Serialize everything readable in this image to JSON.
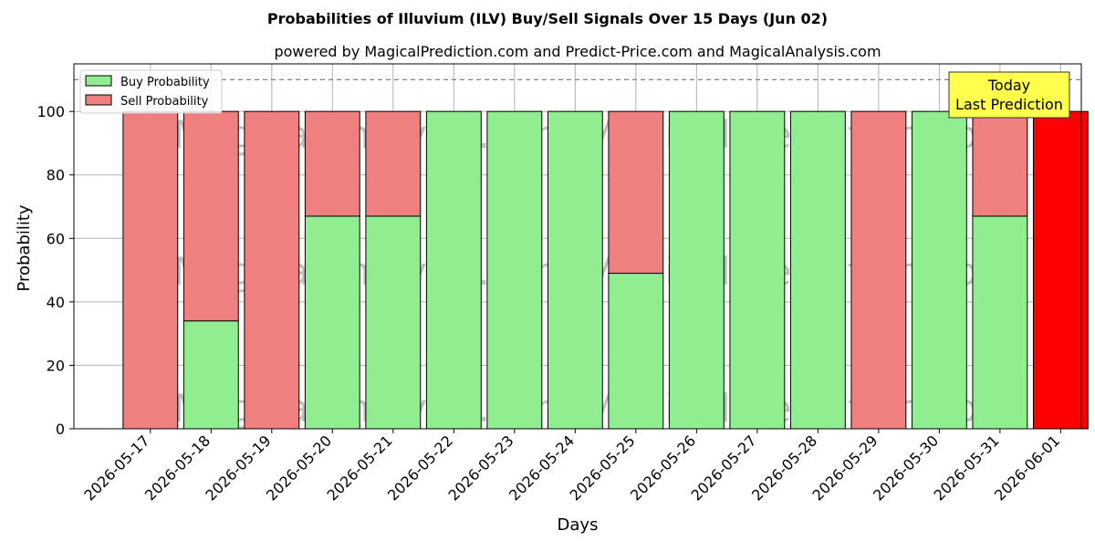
{
  "chart_data": {
    "type": "bar",
    "title": "Probabilities of Illuvium (ILV) Buy/Sell Signals Over 15 Days (Jun 02)",
    "subtitle": "powered by MagicalPrediction.com and Predict-Price.com and MagicalAnalysis.com",
    "xlabel": "Days",
    "ylabel": "Probability",
    "ylim": [
      0,
      115
    ],
    "yticks": [
      0,
      20,
      40,
      60,
      80,
      100
    ],
    "grid": true,
    "stacked": true,
    "legend_placement": "top-left",
    "reference_line": 110,
    "categories": [
      "2026-05-17",
      "2026-05-18",
      "2026-05-19",
      "2026-05-20",
      "2026-05-21",
      "2026-05-22",
      "2026-05-23",
      "2026-05-24",
      "2026-05-25",
      "2026-05-26",
      "2026-05-27",
      "2026-05-28",
      "2026-05-29",
      "2026-05-30",
      "2026-05-31",
      "2026-06-01"
    ],
    "series": [
      {
        "name": "Buy Probability",
        "color": "#90EE90",
        "values": [
          0,
          34,
          0,
          67,
          67,
          100,
          100,
          100,
          49,
          100,
          100,
          100,
          0,
          100,
          67,
          0
        ]
      },
      {
        "name": "Sell Probability",
        "color": "#F08080",
        "values": [
          100,
          66,
          100,
          33,
          33,
          0,
          0,
          0,
          51,
          0,
          0,
          0,
          100,
          0,
          33,
          100
        ]
      }
    ],
    "highlight": {
      "category": "2026-06-01",
      "color": "#FF0000",
      "label_line1": "Today",
      "label_line2": "Last Prediction",
      "box_color": "#FFFF4D"
    },
    "watermark": "MagicalAnalysis.com    MagicalPrediction.com"
  }
}
